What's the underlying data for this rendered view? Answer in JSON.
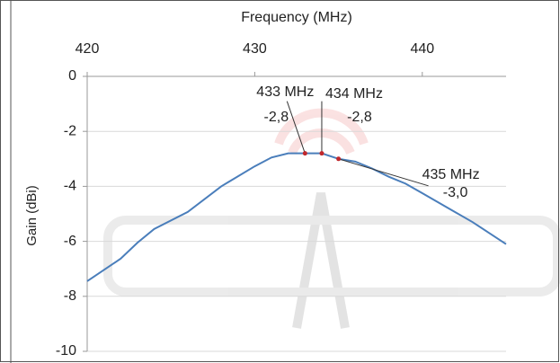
{
  "chart_data": {
    "type": "line",
    "x_label": "Frequency (MHz)",
    "y_label": "Gain (dBi)",
    "x": [
      420,
      422,
      423,
      424,
      426,
      428,
      430,
      431,
      432,
      433,
      434,
      435,
      436,
      437,
      438,
      439,
      440,
      441,
      442,
      443,
      444,
      445
    ],
    "series": [
      {
        "color": "#4a7ebb",
        "values": [
          -7.45,
          -6.63,
          -6.05,
          -5.55,
          -4.93,
          -4.0,
          -3.27,
          -2.95,
          -2.8,
          -2.8,
          -2.8,
          -3.0,
          -3.1,
          -3.35,
          -3.65,
          -3.9,
          -4.25,
          -4.6,
          -4.95,
          -5.3,
          -5.7,
          -6.1
        ]
      }
    ],
    "xlim": [
      420,
      445
    ],
    "xticks": [
      420,
      430,
      440
    ],
    "ylim": [
      -10,
      0
    ],
    "yticks": [
      0,
      -2,
      -4,
      -6,
      -8,
      -10
    ],
    "grid": true,
    "x_axis_position": "top",
    "annotations": [
      {
        "x": 433,
        "y": -2.8,
        "label": "433 MHz",
        "value_label": "-2,8"
      },
      {
        "x": 434,
        "y": -2.8,
        "label": "434 MHz",
        "value_label": "-2,8"
      },
      {
        "x": 435,
        "y": -3.0,
        "label": "435 MHz",
        "value_label": "-3,0"
      }
    ],
    "annotation_color": "#c0282d"
  }
}
